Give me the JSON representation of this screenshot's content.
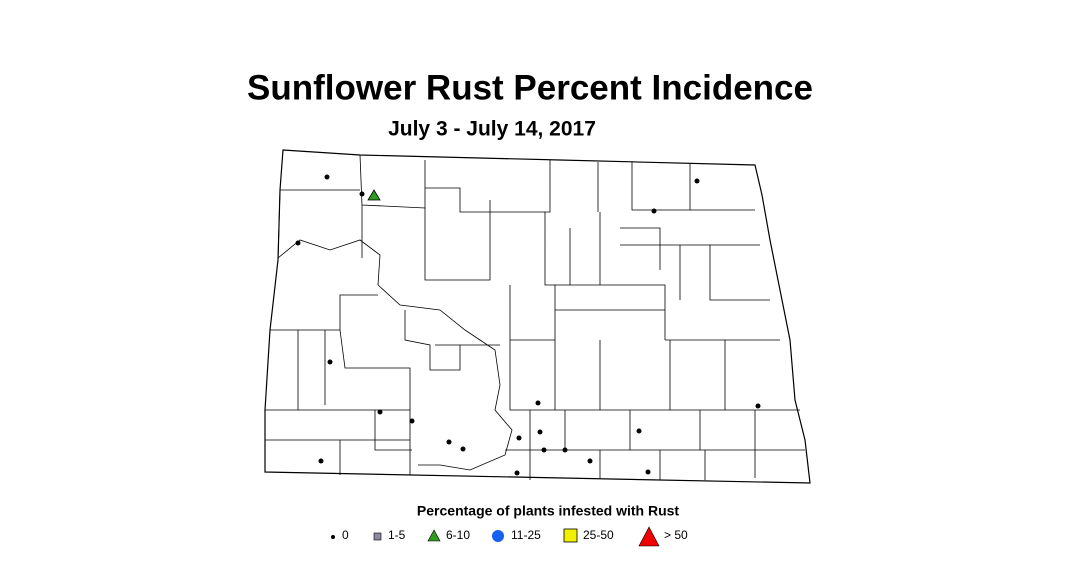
{
  "title": "Sunflower Rust Percent Incidence",
  "subtitle": "July 3 - July 14, 2017",
  "legend": {
    "title": "Percentage of plants infested with Rust",
    "items": [
      "0",
      "1-5",
      "6-10",
      "11-25",
      "25-50",
      "> 50"
    ]
  }
}
